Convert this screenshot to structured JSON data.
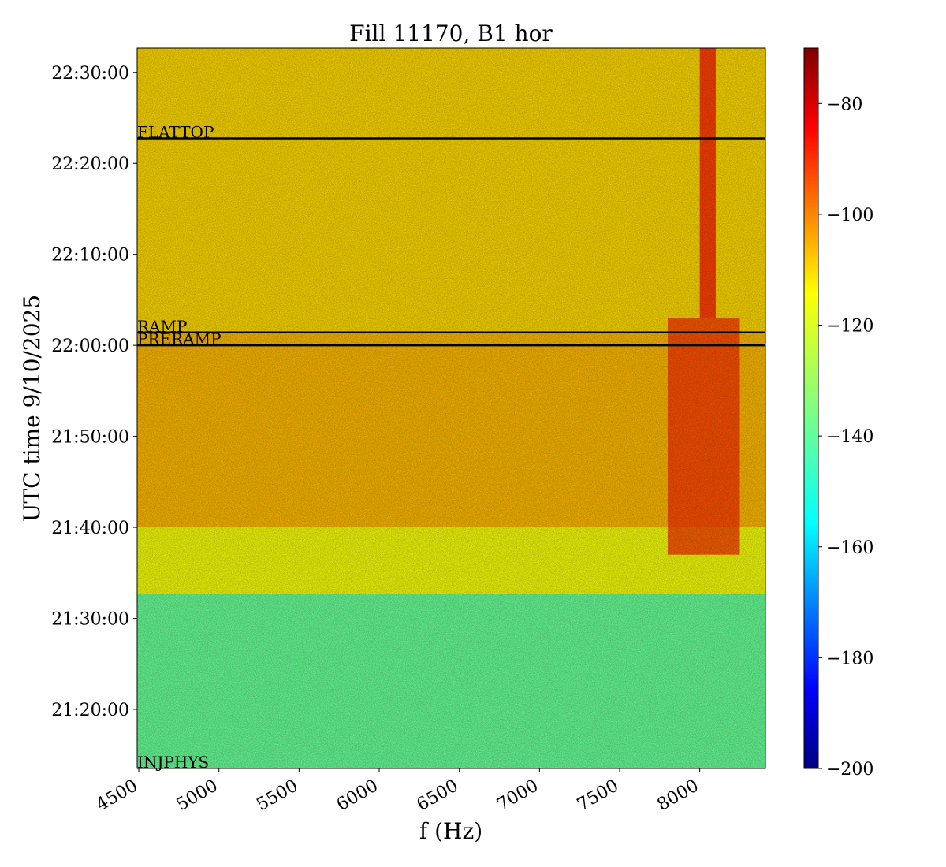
{
  "chart_data": {
    "type": "heatmap",
    "title": "Fill 11170, B1 hor",
    "xlabel": "f (Hz)",
    "ylabel": "UTC time 9/10/2025",
    "xlim": [
      4490,
      8410
    ],
    "ylim": [
      "21:13:30",
      "22:32:40"
    ],
    "x_ticks": [
      {
        "value": 4500,
        "label": "4500"
      },
      {
        "value": 5000,
        "label": "5000"
      },
      {
        "value": 5500,
        "label": "5500"
      },
      {
        "value": 6000,
        "label": "6000"
      },
      {
        "value": 6500,
        "label": "6500"
      },
      {
        "value": 7000,
        "label": "7000"
      },
      {
        "value": 7500,
        "label": "7500"
      },
      {
        "value": 8000,
        "label": "8000"
      }
    ],
    "y_ticks": [
      {
        "value": "21:20:00",
        "label": "21:20:00"
      },
      {
        "value": "21:30:00",
        "label": "21:30:00"
      },
      {
        "value": "21:40:00",
        "label": "21:40:00"
      },
      {
        "value": "21:50:00",
        "label": "21:50:00"
      },
      {
        "value": "22:00:00",
        "label": "22:00:00"
      },
      {
        "value": "22:10:00",
        "label": "22:10:00"
      },
      {
        "value": "22:20:00",
        "label": "22:20:00"
      },
      {
        "value": "22:30:00",
        "label": "22:30:00"
      }
    ],
    "phases": [
      {
        "label": "INJPHYS",
        "time": "21:13:30"
      },
      {
        "label": "PRERAMP",
        "time": "22:00:00"
      },
      {
        "label": "RAMP",
        "time": "22:01:25"
      },
      {
        "label": "FLATTOP",
        "time": "22:22:45"
      }
    ],
    "colorbar": {
      "colormap": "jet",
      "range": [
        -200,
        -70
      ],
      "ticks": [
        {
          "value": -80,
          "label": "−80"
        },
        {
          "value": -100,
          "label": "−100"
        },
        {
          "value": -120,
          "label": "−120"
        },
        {
          "value": -140,
          "label": "−140"
        },
        {
          "value": -160,
          "label": "−160"
        },
        {
          "value": -180,
          "label": "−180"
        },
        {
          "value": -200,
          "label": "−200"
        }
      ]
    },
    "regions": [
      {
        "time_range": [
          "21:13:30",
          "21:32:40"
        ],
        "level": -138
      },
      {
        "time_range": [
          "21:32:40",
          "21:40:00"
        ],
        "level": -120
      },
      {
        "time_range": [
          "21:40:00",
          "22:01:25"
        ],
        "level": -110
      },
      {
        "time_range": [
          "22:01:25",
          "22:32:40"
        ],
        "level": -114
      }
    ],
    "hotspots": [
      {
        "freq_range": [
          7800,
          8250
        ],
        "time_range": [
          "21:37:00",
          "22:03:00"
        ],
        "level": -92
      },
      {
        "freq_range": [
          8000,
          8100
        ],
        "time_range": [
          "22:03:00",
          "22:32:40"
        ],
        "level": -88
      }
    ],
    "grid": false
  }
}
